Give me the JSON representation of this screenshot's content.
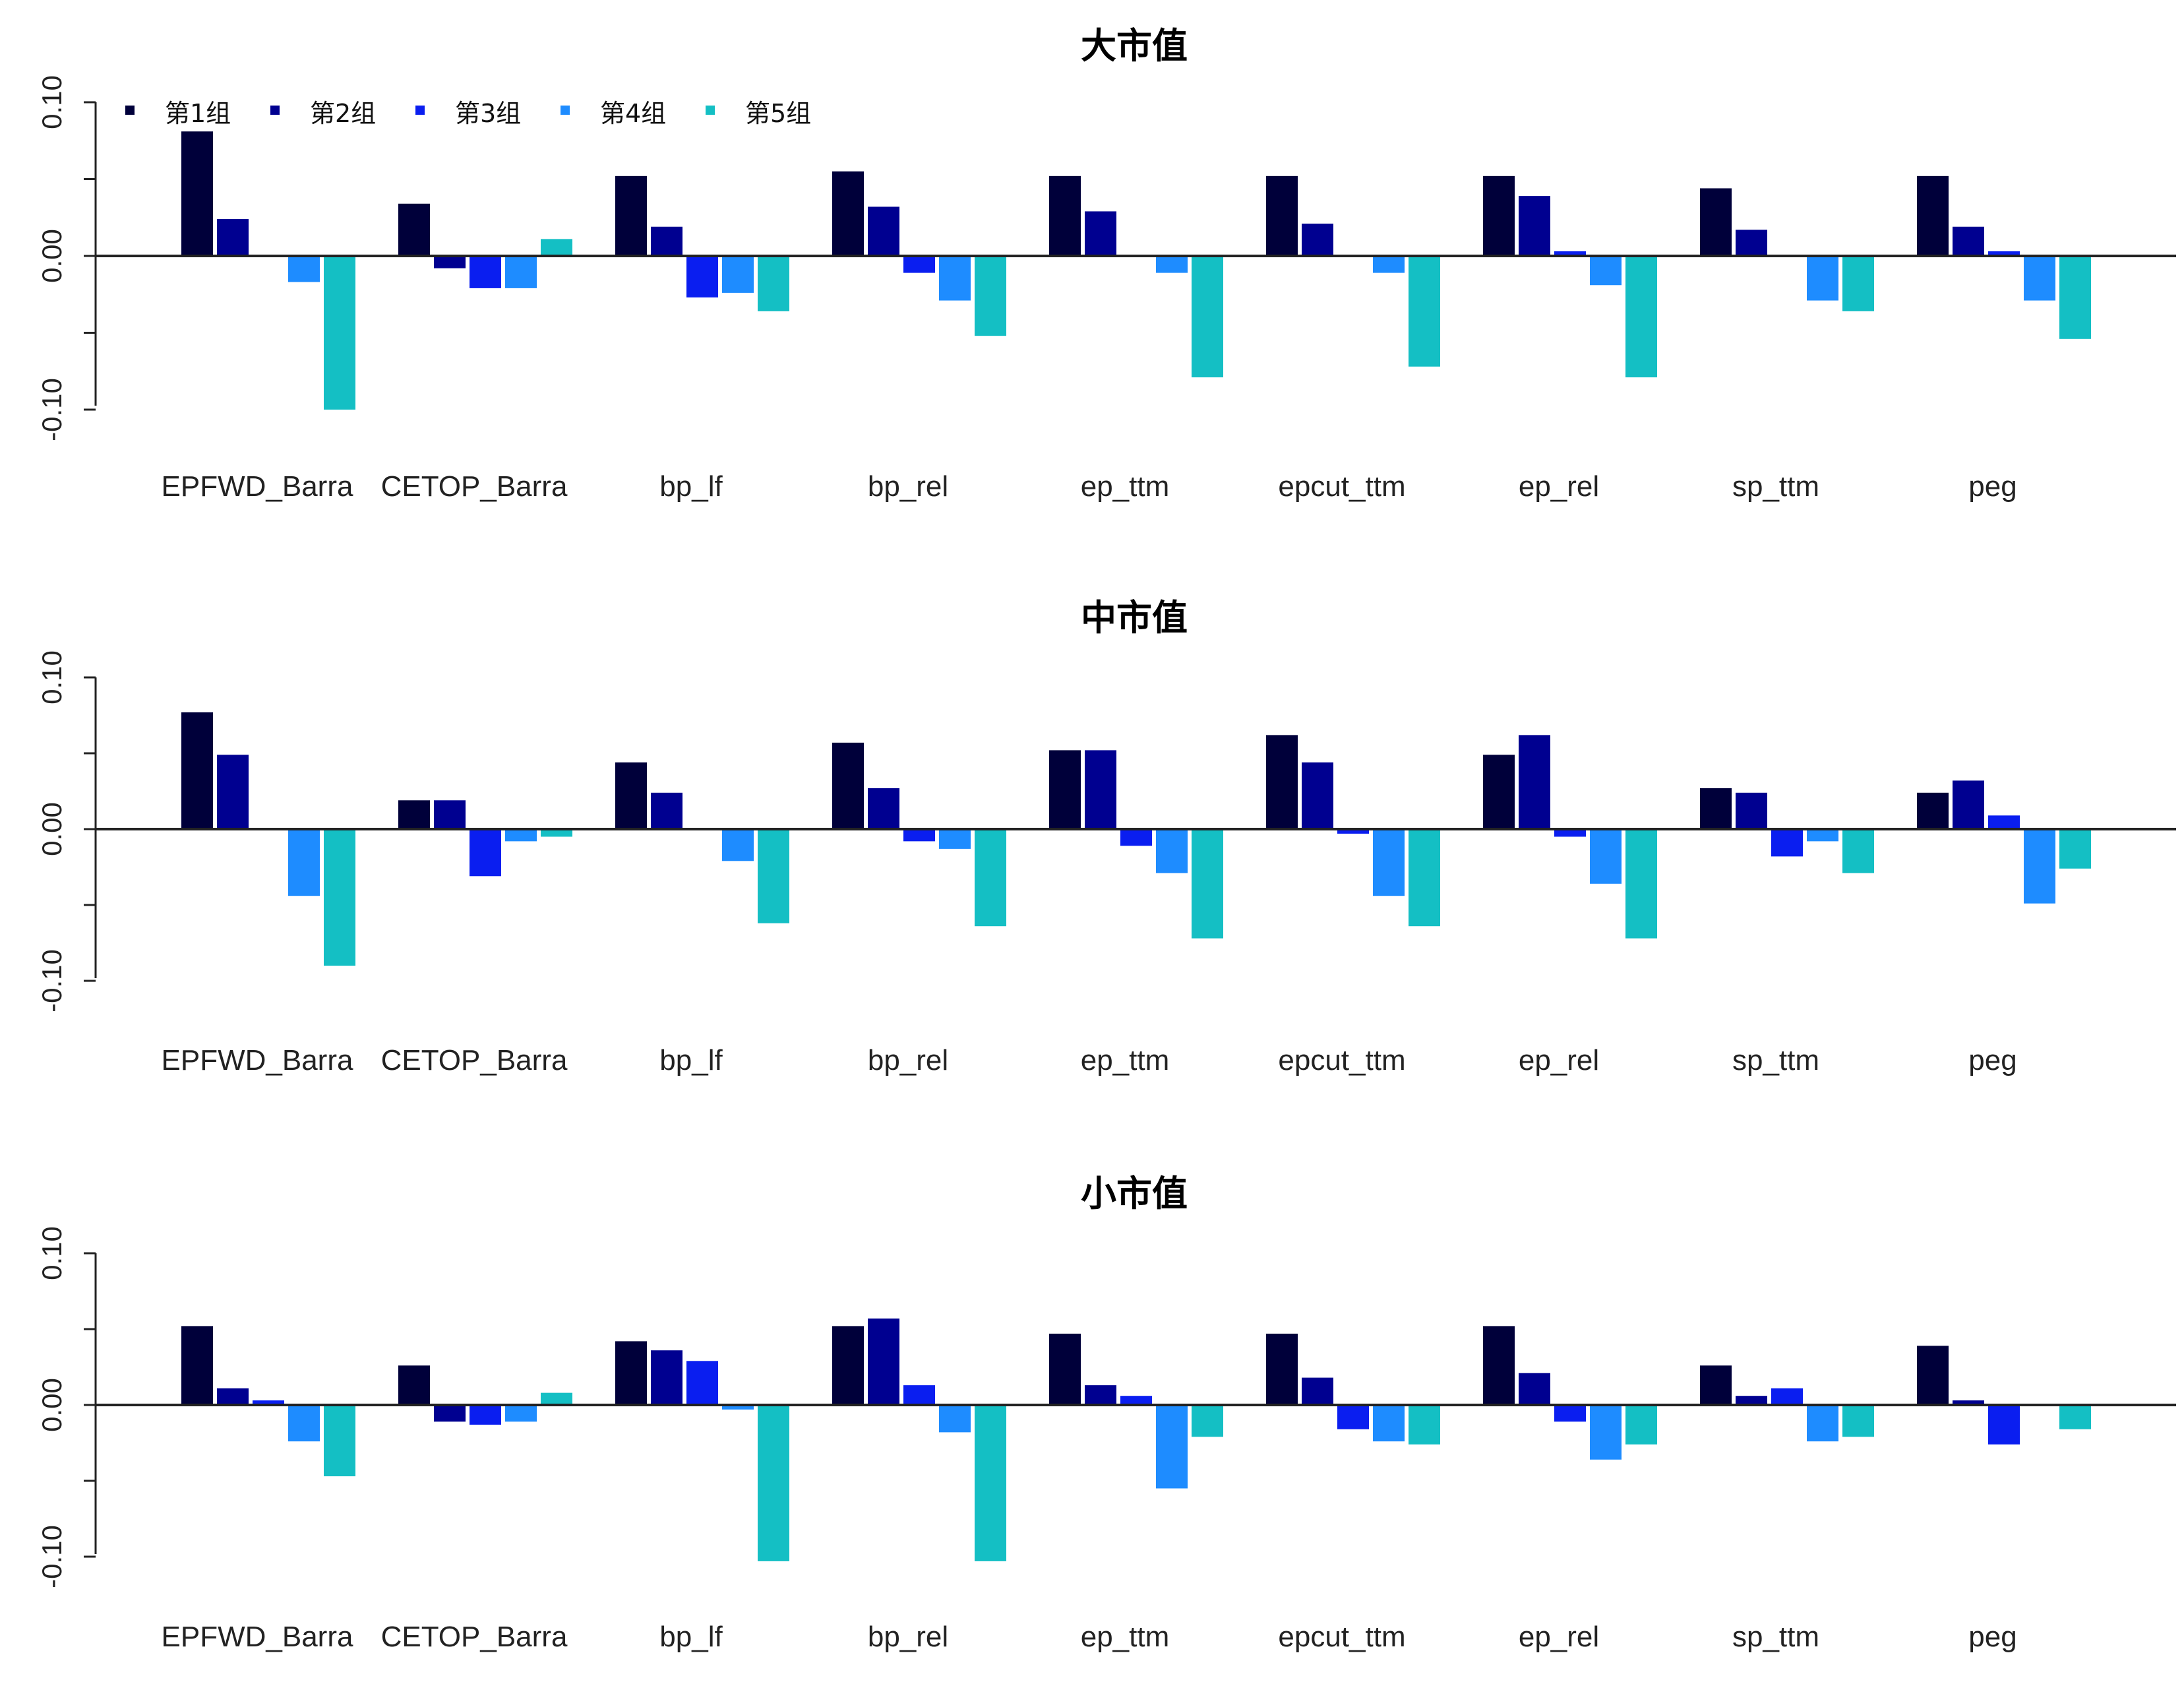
{
  "colors": [
    "#00003a",
    "#000090",
    "#0a1ef0",
    "#1e8cff",
    "#14bfc4"
  ],
  "legend": [
    "第1组",
    "第2组",
    "第3组",
    "第4组",
    "第5组"
  ],
  "chart_data": [
    {
      "type": "bar",
      "title": "大市值",
      "categories": [
        "EPFWD_Barra",
        "CETOP_Barra",
        "bp_lf",
        "bp_rel",
        "ep_ttm",
        "epcut_ttm",
        "ep_rel",
        "sp_ttm",
        "peg"
      ],
      "ylim": [
        -0.1,
        0.1
      ],
      "yticks": [
        "0.10",
        "0.00",
        "-0.10"
      ],
      "legend_position": "top-left",
      "series": [
        {
          "name": "第1组",
          "values": [
            0.081,
            0.034,
            0.052,
            0.055,
            0.052,
            0.052,
            0.052,
            0.044,
            0.052
          ]
        },
        {
          "name": "第2组",
          "values": [
            0.024,
            -0.008,
            0.019,
            0.032,
            0.029,
            0.021,
            0.039,
            0.017,
            0.019
          ]
        },
        {
          "name": "第3组",
          "values": [
            0.0,
            -0.021,
            -0.027,
            -0.011,
            0.0,
            0.0,
            0.003,
            0.0,
            0.003
          ]
        },
        {
          "name": "第4组",
          "values": [
            -0.017,
            -0.021,
            -0.024,
            -0.029,
            -0.011,
            -0.011,
            -0.019,
            -0.029,
            -0.029
          ]
        },
        {
          "name": "第5组",
          "values": [
            -0.1,
            0.011,
            -0.036,
            -0.052,
            -0.079,
            -0.072,
            -0.079,
            -0.036,
            -0.054
          ]
        }
      ]
    },
    {
      "type": "bar",
      "title": "中市值",
      "categories": [
        "EPFWD_Barra",
        "CETOP_Barra",
        "bp_lf",
        "bp_rel",
        "ep_ttm",
        "epcut_ttm",
        "ep_rel",
        "sp_ttm",
        "peg"
      ],
      "ylim": [
        -0.1,
        0.1
      ],
      "yticks": [
        "0.10",
        "0.00",
        "-0.10"
      ],
      "series": [
        {
          "name": "第1组",
          "values": [
            0.077,
            0.019,
            0.044,
            0.057,
            0.052,
            0.062,
            0.049,
            0.027,
            0.024
          ]
        },
        {
          "name": "第2组",
          "values": [
            0.049,
            0.019,
            0.024,
            0.027,
            0.052,
            0.044,
            0.062,
            0.024,
            0.032
          ]
        },
        {
          "name": "第3组",
          "values": [
            0.0,
            -0.031,
            0.0,
            -0.008,
            -0.011,
            -0.003,
            -0.005,
            -0.018,
            0.009
          ]
        },
        {
          "name": "第4组",
          "values": [
            -0.044,
            -0.008,
            -0.021,
            -0.013,
            -0.029,
            -0.044,
            -0.036,
            -0.008,
            -0.049
          ]
        },
        {
          "name": "第5组",
          "values": [
            -0.09,
            -0.005,
            -0.062,
            -0.064,
            -0.072,
            -0.064,
            -0.072,
            -0.029,
            -0.026
          ]
        }
      ]
    },
    {
      "type": "bar",
      "title": "小市值",
      "categories": [
        "EPFWD_Barra",
        "CETOP_Barra",
        "bp_lf",
        "bp_rel",
        "ep_ttm",
        "epcut_ttm",
        "ep_rel",
        "sp_ttm",
        "peg"
      ],
      "ylim": [
        -0.1,
        0.1
      ],
      "yticks": [
        "0.10",
        "0.00",
        "-0.10"
      ],
      "series": [
        {
          "name": "第1组",
          "values": [
            0.052,
            0.026,
            0.042,
            0.052,
            0.047,
            0.047,
            0.052,
            0.026,
            0.039
          ]
        },
        {
          "name": "第2组",
          "values": [
            0.011,
            -0.011,
            0.036,
            0.057,
            0.013,
            0.018,
            0.021,
            0.006,
            0.003
          ]
        },
        {
          "name": "第3组",
          "values": [
            0.003,
            -0.013,
            0.029,
            0.013,
            0.006,
            -0.016,
            -0.011,
            0.011,
            -0.026
          ]
        },
        {
          "name": "第4组",
          "values": [
            -0.024,
            -0.011,
            -0.003,
            -0.018,
            -0.055,
            -0.024,
            -0.036,
            -0.024,
            0.0
          ]
        },
        {
          "name": "第5组",
          "values": [
            -0.047,
            0.008,
            -0.103,
            -0.103,
            -0.021,
            -0.026,
            -0.026,
            -0.021,
            -0.016
          ]
        }
      ]
    }
  ]
}
